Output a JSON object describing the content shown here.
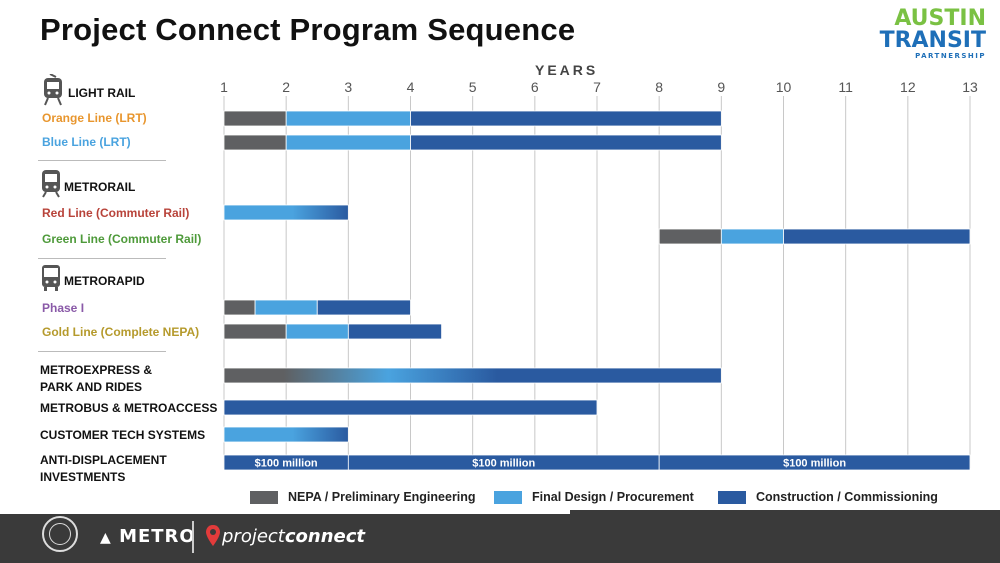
{
  "title": "Project Connect Program Sequence",
  "logo": {
    "line1": "AUSTIN",
    "line2": "TRANSIT",
    "line3": "PARTNERSHIP"
  },
  "colors": {
    "nepa": "#5f6062",
    "design": "#4aa3df",
    "construction": "#2a5aa0",
    "orange": "#e8962e",
    "blue": "#4aa3df",
    "red": "#b8433a",
    "green": "#4e9a3a",
    "purple": "#8a5aa8",
    "gold": "#b59a2c"
  },
  "footer": {
    "metro": "METRO",
    "pc_light": "project",
    "pc_bold": "connect"
  },
  "chart_data": {
    "type": "bar",
    "subtype": "gantt",
    "xlabel": "YEARS",
    "xlim": [
      1,
      13
    ],
    "xticks": [
      1,
      2,
      3,
      4,
      5,
      6,
      7,
      8,
      9,
      10,
      11,
      12,
      13
    ],
    "grid": true,
    "legend_position": "bottom",
    "legend": [
      {
        "key": "nepa",
        "label": "NEPA / Preliminary Engineering"
      },
      {
        "key": "design",
        "label": "Final Design / Procurement"
      },
      {
        "key": "construction",
        "label": "Construction / Commissioning"
      }
    ],
    "categories": [
      {
        "key": "lightrail",
        "label": "LIGHT RAIL",
        "icon": "light-rail-icon"
      },
      {
        "key": "metrorail",
        "label": "METRORAIL",
        "icon": "metrorail-icon"
      },
      {
        "key": "metrorapid",
        "label": "METRORAPID",
        "icon": "bus-icon"
      }
    ],
    "rows": [
      {
        "label": "Orange Line (LRT)",
        "color": "orange",
        "segments": [
          {
            "phase": "nepa",
            "start": 1,
            "end": 2
          },
          {
            "phase": "design",
            "start": 2,
            "end": 4
          },
          {
            "phase": "construction",
            "start": 4,
            "end": 9
          }
        ]
      },
      {
        "label": "Blue Line (LRT)",
        "color": "blue",
        "segments": [
          {
            "phase": "nepa",
            "start": 1,
            "end": 2
          },
          {
            "phase": "design",
            "start": 2,
            "end": 4
          },
          {
            "phase": "construction",
            "start": 4,
            "end": 9
          }
        ]
      },
      {
        "label": "Red Line (Commuter Rail)",
        "color": "red",
        "segments": [
          {
            "phase": "gradient-design-construction",
            "start": 1,
            "end": 3
          }
        ]
      },
      {
        "label": "Green Line (Commuter Rail)",
        "color": "green",
        "segments": [
          {
            "phase": "nepa",
            "start": 8,
            "end": 9
          },
          {
            "phase": "design",
            "start": 9,
            "end": 10
          },
          {
            "phase": "construction",
            "start": 10,
            "end": 13
          }
        ]
      },
      {
        "label": "Phase I",
        "color": "purple",
        "segments": [
          {
            "phase": "nepa",
            "start": 1,
            "end": 1.5
          },
          {
            "phase": "design",
            "start": 1.5,
            "end": 2.5
          },
          {
            "phase": "construction",
            "start": 2.5,
            "end": 4
          }
        ]
      },
      {
        "label": "Gold Line (Complete NEPA)",
        "color": "gold",
        "segments": [
          {
            "phase": "nepa",
            "start": 1,
            "end": 2
          },
          {
            "phase": "design",
            "start": 2,
            "end": 3
          },
          {
            "phase": "construction",
            "start": 3,
            "end": 4.5
          }
        ]
      },
      {
        "label": "METROEXPRESS & PARK AND RIDES",
        "color": "black",
        "segments": [
          {
            "phase": "gradient-all",
            "start": 1,
            "end": 9
          }
        ]
      },
      {
        "label": "METROBUS & METROACCESS",
        "color": "black",
        "segments": [
          {
            "phase": "construction",
            "start": 1,
            "end": 7
          }
        ]
      },
      {
        "label": "CUSTOMER TECH SYSTEMS",
        "color": "black",
        "segments": [
          {
            "phase": "gradient-design-construction",
            "start": 1,
            "end": 3
          }
        ]
      },
      {
        "label": "ANTI-DISPLACEMENT INVESTMENTS",
        "color": "black",
        "segments": [
          {
            "phase": "construction",
            "start": 1,
            "end": 3,
            "text": "$100 million"
          },
          {
            "phase": "construction",
            "start": 3,
            "end": 8,
            "text": "$100 million"
          },
          {
            "phase": "construction",
            "start": 8,
            "end": 13,
            "text": "$100 million"
          }
        ]
      }
    ]
  }
}
